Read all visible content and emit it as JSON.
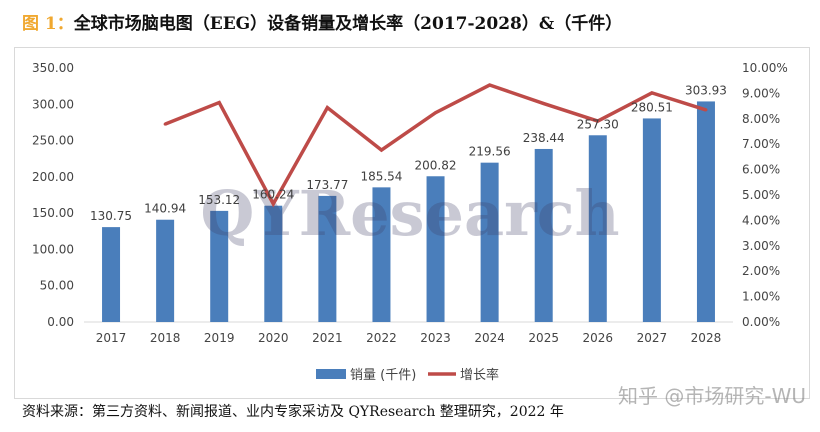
{
  "title": {
    "prefix": "图 1：",
    "text": "全球市场脑电图（EEG）设备销量及增长率（2017-2028）&（千件）"
  },
  "chart_data": {
    "type": "bar",
    "categories": [
      "2017",
      "2018",
      "2019",
      "2020",
      "2021",
      "2022",
      "2023",
      "2024",
      "2025",
      "2026",
      "2027",
      "2028"
    ],
    "series": [
      {
        "name": "销量 (千件)",
        "type": "bar",
        "axis": "left",
        "color": "#4a7ebb",
        "values": [
          130.75,
          140.94,
          153.12,
          160.24,
          173.77,
          185.54,
          200.82,
          219.56,
          238.44,
          257.3,
          280.51,
          303.93
        ],
        "labels": [
          "130.75",
          "140.94",
          "153.12",
          "160.24",
          "173.77",
          "185.54",
          "200.82",
          "219.56",
          "238.44",
          "257.30",
          "280.51",
          "303.93"
        ]
      },
      {
        "name": "增长率",
        "type": "line",
        "axis": "right",
        "color": "#be4b48",
        "values": [
          null,
          7.79,
          8.64,
          4.65,
          8.44,
          6.77,
          8.24,
          9.33,
          8.6,
          7.91,
          9.02,
          8.35
        ]
      }
    ],
    "y_left": {
      "lim": [
        0,
        350
      ],
      "ticks": [
        "0.00",
        "50.00",
        "100.00",
        "150.00",
        "200.00",
        "250.00",
        "300.00",
        "350.00"
      ]
    },
    "y_right": {
      "lim": [
        0,
        10
      ],
      "ticks": [
        "0.00%",
        "1.00%",
        "2.00%",
        "3.00%",
        "4.00%",
        "5.00%",
        "6.00%",
        "7.00%",
        "8.00%",
        "9.00%",
        "10.00%"
      ]
    },
    "grid": false,
    "legend": "bottom",
    "watermark": "QYResearch"
  },
  "source": "资料来源：第三方资料、新闻报道、业内专家采访及 QYResearch 整理研究，2022 年",
  "overlay_watermark": "知乎 @市场研究-WU"
}
